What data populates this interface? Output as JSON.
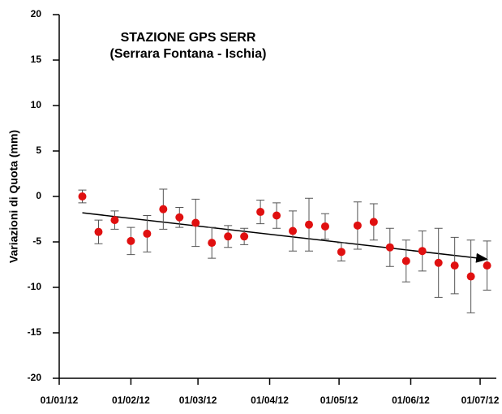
{
  "chart_data": {
    "type": "scatter",
    "title": "STAZIONE GPS SERR",
    "subtitle": "(Serrara Fontana - Ischia)",
    "y_label": "Variazioni di Quota (mm)",
    "x": [
      "2012-01-11",
      "2012-01-18",
      "2012-01-25",
      "2012-02-01",
      "2012-02-08",
      "2012-02-15",
      "2012-02-22",
      "2012-02-29",
      "2012-03-07",
      "2012-03-14",
      "2012-03-21",
      "2012-03-28",
      "2012-04-04",
      "2012-04-11",
      "2012-04-18",
      "2012-04-25",
      "2012-05-02",
      "2012-05-09",
      "2012-05-16",
      "2012-05-23",
      "2012-05-30",
      "2012-06-06",
      "2012-06-13",
      "2012-06-20",
      "2012-06-27",
      "2012-07-04"
    ],
    "series": [
      {
        "color": "#e01010",
        "values": [
          0.0,
          -3.9,
          -2.6,
          -4.9,
          -4.1,
          -1.4,
          -2.3,
          -2.9,
          -5.1,
          -4.4,
          -4.4,
          -1.7,
          -2.1,
          -3.8,
          -3.1,
          -3.3,
          -6.1,
          -3.2,
          -2.8,
          -5.6,
          -7.1,
          -6.0,
          -7.3,
          -7.6,
          -8.8,
          -7.6
        ],
        "errors": [
          0.7,
          1.3,
          1.0,
          1.5,
          2.0,
          2.2,
          1.1,
          2.6,
          1.7,
          1.2,
          0.9,
          1.3,
          1.4,
          2.2,
          2.9,
          1.4,
          1.0,
          2.6,
          2.0,
          2.1,
          2.3,
          2.2,
          3.8,
          3.1,
          4.0,
          2.7
        ]
      }
    ],
    "trend": {
      "x": [
        "2012-01-11",
        "2012-07-04"
      ],
      "values": [
        -1.8,
        -6.9
      ],
      "color": "#000000"
    },
    "xlim": [
      "2012-01-01",
      "2012-07-08"
    ],
    "xticks": [
      {
        "value": "2012-01-01",
        "label": "01/01/12"
      },
      {
        "value": "2012-02-01",
        "label": "01/02/12"
      },
      {
        "value": "2012-03-01",
        "label": "01/03/12"
      },
      {
        "value": "2012-04-01",
        "label": "01/04/12"
      },
      {
        "value": "2012-05-01",
        "label": "01/05/12"
      },
      {
        "value": "2012-06-01",
        "label": "01/06/12"
      },
      {
        "value": "2012-07-01",
        "label": "01/07/12"
      }
    ],
    "ylim": [
      -20,
      20
    ],
    "yticks": [
      -20,
      -15,
      -10,
      -5,
      0,
      5,
      10,
      15,
      20
    ]
  }
}
